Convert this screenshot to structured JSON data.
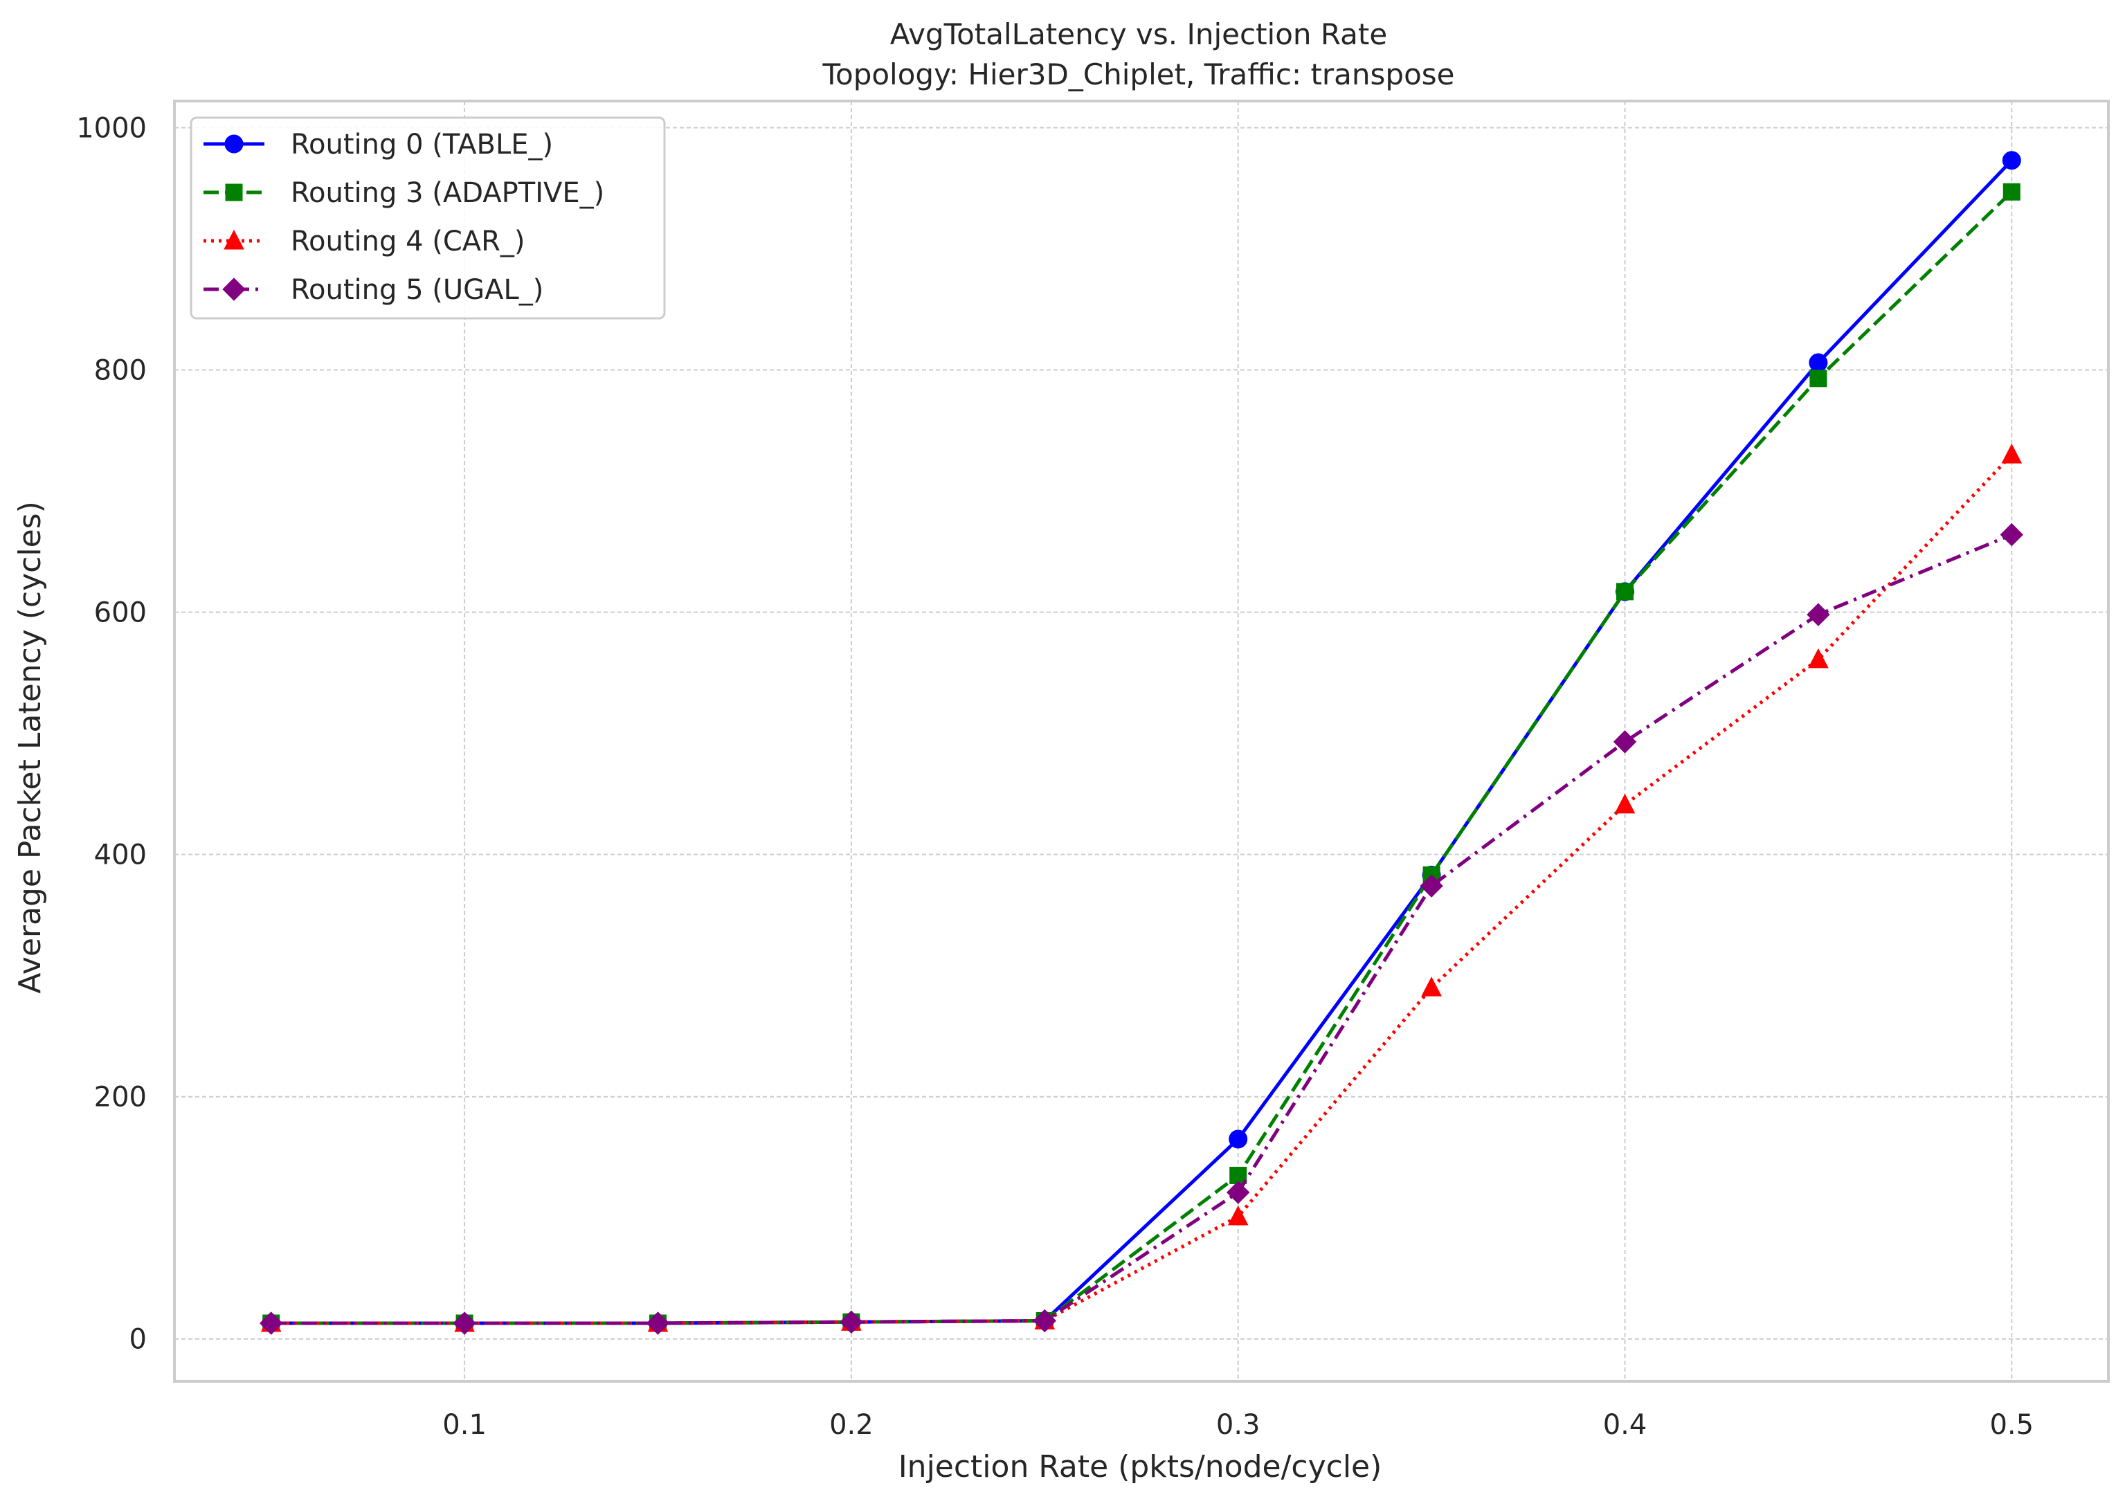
{
  "chart_data": {
    "type": "line",
    "title": "AvgTotalLatency vs. Injection Rate",
    "subtitle": "Topology: Hier3D_Chiplet, Traffic: transpose",
    "xlabel": "Injection Rate (pkts/node/cycle)",
    "ylabel": "Average Packet Latency (cycles)",
    "xlim": [
      0.025,
      0.525
    ],
    "ylim": [
      -35,
      1022
    ],
    "xticks": [
      0.1,
      0.2,
      0.3,
      0.4,
      0.5
    ],
    "xtick_labels": [
      "0.1",
      "0.2",
      "0.3",
      "0.4",
      "0.5"
    ],
    "yticks": [
      0,
      200,
      400,
      600,
      800,
      1000
    ],
    "ytick_labels": [
      "0",
      "200",
      "400",
      "600",
      "800",
      "1000"
    ],
    "grid": true,
    "legend_position": "top-left",
    "x": [
      0.05,
      0.1,
      0.15,
      0.2,
      0.25,
      0.3,
      0.35,
      0.4,
      0.45,
      0.5
    ],
    "series": [
      {
        "name": "Routing 0 (TABLE_)",
        "color": "#0000ff",
        "line_style": "solid",
        "marker": "circle",
        "values": [
          13,
          13,
          13,
          14,
          15,
          165,
          383,
          617,
          806,
          973
        ]
      },
      {
        "name": "Routing 3 (ADAPTIVE_)",
        "color": "#008000",
        "line_style": "dashed",
        "marker": "square",
        "values": [
          13,
          13,
          13,
          14,
          15,
          135,
          383,
          617,
          793,
          947
        ]
      },
      {
        "name": "Routing 4 (CAR_)",
        "color": "#ff0000",
        "line_style": "dotted",
        "marker": "triangle",
        "values": [
          13,
          13,
          13,
          14,
          15,
          101,
          290,
          441,
          561,
          730
        ]
      },
      {
        "name": "Routing 5 (UGAL_)",
        "color": "#800080",
        "line_style": "dashdot",
        "marker": "diamond",
        "values": [
          13,
          13,
          13,
          14,
          15,
          121,
          374,
          493,
          598,
          664
        ]
      }
    ]
  }
}
